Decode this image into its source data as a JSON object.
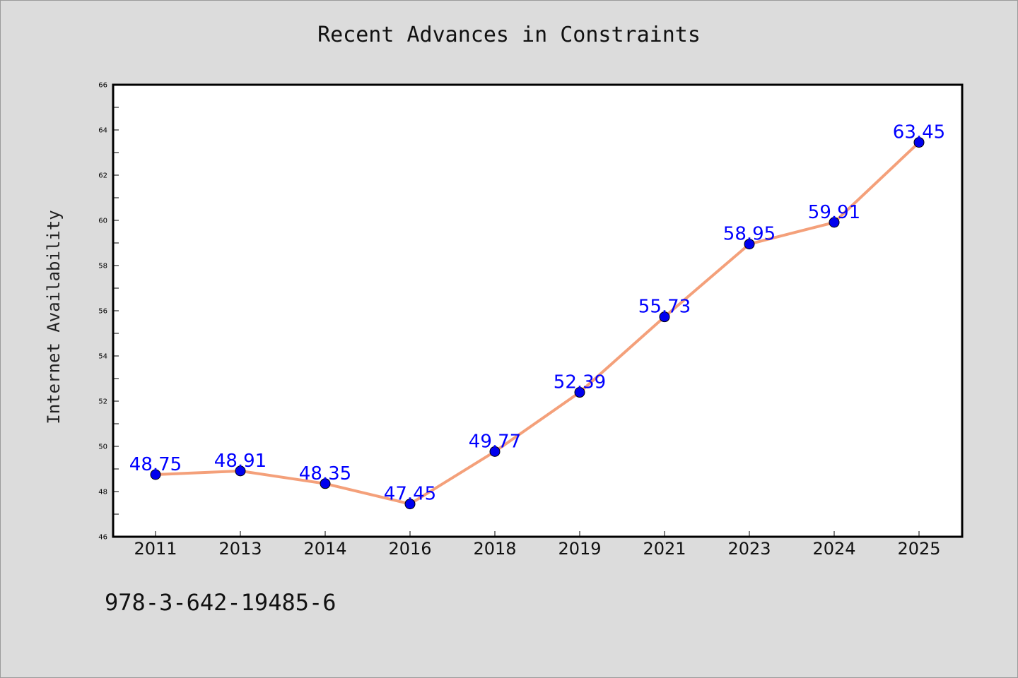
{
  "chart_data": {
    "type": "line",
    "title": "Recent Advances in Constraints",
    "xlabel": "",
    "ylabel": "Internet Availability",
    "categories": [
      "2011",
      "2013",
      "2014",
      "2016",
      "2018",
      "2019",
      "2021",
      "2023",
      "2024",
      "2025"
    ],
    "series": [
      {
        "values": [
          48.75,
          48.91,
          48.35,
          47.45,
          49.77,
          52.39,
          55.73,
          58.95,
          59.91,
          63.45
        ],
        "data_labels": [
          "48.75",
          "48.91",
          "48.35",
          "47.45",
          "49.77",
          "52.39",
          "55.73",
          "58.95",
          "59.91",
          "63.45"
        ],
        "line_color": "#f4a07a",
        "marker_color": "#0000ee"
      }
    ],
    "ylim": [
      46,
      66
    ],
    "yticks": [
      "46",
      "48",
      "50",
      "52",
      "54",
      "56",
      "58",
      "60",
      "62",
      "64",
      "66"
    ],
    "grid": false,
    "legend": "none",
    "label_color": "#0000ff"
  },
  "footer": {
    "isbn": "978-3-642-19485-6"
  }
}
